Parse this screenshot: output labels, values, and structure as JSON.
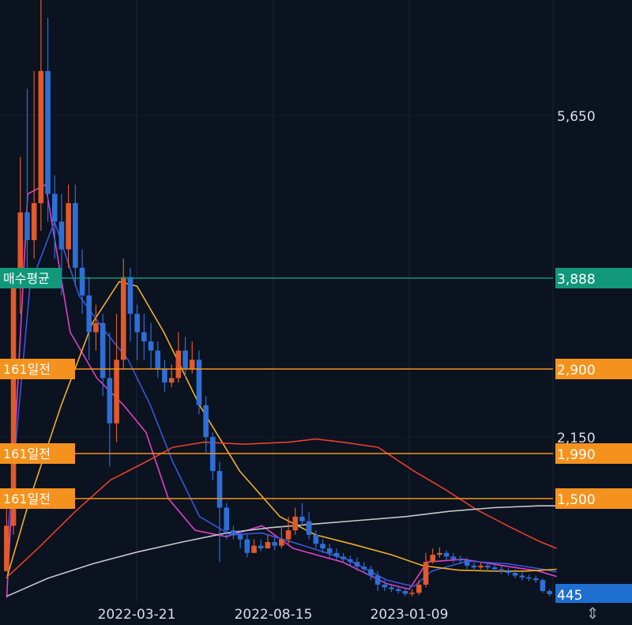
{
  "chart_data": {
    "type": "candlestick",
    "x_ticks": [
      "2022-03-21",
      "2022-08-15",
      "2023-01-09"
    ],
    "y_ticks": [
      "5,650",
      "2,150"
    ],
    "ylim": [
      400,
      6300
    ],
    "grid": true,
    "price_lines": [
      {
        "label": "매수평균",
        "value": 3888,
        "value_text": "3,888",
        "color": "#11977a"
      },
      {
        "label": "161일전",
        "value": 2900,
        "value_text": "2,900",
        "color": "#f5921e"
      },
      {
        "label": "161일전",
        "value": 1990,
        "value_text": "1,990",
        "color": "#f5921e"
      },
      {
        "label": "161일전",
        "value": 1500,
        "value_text": "1,500",
        "color": "#f5921e"
      }
    ],
    "current_price": {
      "value": 445,
      "value_text": "445",
      "color": "#1f6fd1"
    },
    "colors": {
      "up": "#e05a2b",
      "down": "#2d6fd6",
      "ma_short": "#e040c8",
      "ma_mid": "#3a56d8",
      "ma_long1": "#f0b020",
      "ma_long2": "#e8402a",
      "ma_long3": "#c8c8c8"
    },
    "candles": [
      [
        700,
        1200,
        1500,
        700
      ],
      [
        1200,
        3800,
        4000,
        1100
      ],
      [
        3800,
        4600,
        5200,
        3500
      ],
      [
        4600,
        4300,
        5800,
        4000
      ],
      [
        4300,
        4700,
        5900,
        4100
      ],
      [
        4700,
        5900,
        6300,
        4400
      ],
      [
        5900,
        4800,
        6200,
        4500
      ],
      [
        4800,
        4500,
        5000,
        4100
      ],
      [
        4500,
        4200,
        4800,
        3700
      ],
      [
        4200,
        4700,
        4900,
        4000
      ],
      [
        4700,
        4000,
        4900,
        3800
      ],
      [
        4000,
        3700,
        4200,
        3500
      ],
      [
        3700,
        3300,
        3900,
        3000
      ],
      [
        3300,
        3400,
        3600,
        3100
      ],
      [
        3400,
        2800,
        3500,
        2600
      ],
      [
        2800,
        2300,
        3300,
        1850
      ],
      [
        2300,
        3000,
        3500,
        2100
      ],
      [
        3000,
        3900,
        4100,
        2900
      ],
      [
        3900,
        3500,
        4000,
        3200
      ],
      [
        3500,
        3300,
        3600,
        3000
      ],
      [
        3300,
        3200,
        3500,
        3000
      ],
      [
        3200,
        3100,
        3400,
        2900
      ],
      [
        3100,
        2900,
        3200,
        2800
      ],
      [
        2900,
        2750,
        3000,
        2650
      ],
      [
        2750,
        2800,
        2950,
        2700
      ],
      [
        2800,
        3100,
        3300,
        2750
      ],
      [
        3100,
        2900,
        3250,
        2800
      ],
      [
        2900,
        3000,
        3200,
        2850
      ],
      [
        3000,
        2500,
        3100,
        2400
      ],
      [
        2500,
        2150,
        2600,
        2000
      ],
      [
        2150,
        1800,
        2200,
        1700
      ],
      [
        1800,
        1400,
        1900,
        800
      ],
      [
        1400,
        1150,
        1450,
        1050
      ],
      [
        1150,
        1100,
        1200,
        1050
      ],
      [
        1100,
        1050,
        1150,
        950
      ],
      [
        1050,
        900,
        1100,
        850
      ],
      [
        900,
        980,
        1050,
        900
      ],
      [
        980,
        950,
        1050,
        920
      ],
      [
        950,
        1020,
        1100,
        950
      ],
      [
        1020,
        980,
        1080,
        930
      ],
      [
        980,
        1050,
        1200,
        950
      ],
      [
        1050,
        1150,
        1300,
        1000
      ],
      [
        1150,
        1300,
        1400,
        1100
      ],
      [
        1300,
        1250,
        1450,
        1200
      ],
      [
        1250,
        1100,
        1350,
        1050
      ],
      [
        1100,
        1000,
        1150,
        950
      ],
      [
        1000,
        950,
        1050,
        900
      ],
      [
        950,
        900,
        1000,
        850
      ],
      [
        900,
        860,
        950,
        820
      ],
      [
        860,
        830,
        900,
        790
      ],
      [
        830,
        800,
        870,
        760
      ],
      [
        800,
        750,
        850,
        700
      ],
      [
        750,
        720,
        800,
        680
      ],
      [
        720,
        650,
        760,
        600
      ],
      [
        650,
        550,
        700,
        480
      ],
      [
        550,
        520,
        600,
        480
      ],
      [
        520,
        500,
        560,
        470
      ],
      [
        500,
        480,
        530,
        450
      ],
      [
        480,
        450,
        500,
        430
      ],
      [
        450,
        460,
        500,
        430
      ],
      [
        460,
        550,
        600,
        440
      ],
      [
        550,
        800,
        900,
        520
      ],
      [
        800,
        880,
        950,
        780
      ],
      [
        880,
        900,
        960,
        850
      ],
      [
        900,
        860,
        930,
        820
      ],
      [
        860,
        830,
        900,
        790
      ],
      [
        830,
        820,
        870,
        780
      ],
      [
        820,
        760,
        850,
        720
      ],
      [
        760,
        740,
        790,
        700
      ],
      [
        740,
        760,
        800,
        720
      ],
      [
        760,
        740,
        790,
        700
      ],
      [
        740,
        720,
        770,
        690
      ],
      [
        720,
        700,
        760,
        670
      ],
      [
        700,
        680,
        730,
        650
      ],
      [
        680,
        650,
        720,
        620
      ],
      [
        650,
        630,
        690,
        600
      ],
      [
        630,
        620,
        660,
        590
      ],
      [
        620,
        600,
        650,
        570
      ],
      [
        600,
        480,
        620,
        460
      ],
      [
        480,
        445,
        500,
        430
      ]
    ],
    "ma_lines": [
      [
        [
          0.08,
          420
        ],
        [
          0.55,
          4800
        ],
        [
          0.95,
          4900
        ],
        [
          1.5,
          3300
        ],
        [
          2.1,
          2800
        ],
        [
          2.7,
          2500
        ],
        [
          3.2,
          2200
        ],
        [
          3.7,
          1500
        ],
        [
          4.3,
          1150
        ],
        [
          5.0,
          1080
        ],
        [
          5.8,
          1200
        ],
        [
          6.5,
          950
        ],
        [
          7.6,
          800
        ],
        [
          8.6,
          560
        ],
        [
          9.1,
          500
        ],
        [
          9.5,
          800
        ],
        [
          10.3,
          830
        ],
        [
          11.2,
          760
        ],
        [
          12.0,
          700
        ],
        [
          12.4,
          640
        ]
      ],
      [
        [
          0.08,
          1000
        ],
        [
          0.6,
          3800
        ],
        [
          1.15,
          4500
        ],
        [
          1.7,
          3700
        ],
        [
          2.3,
          3300
        ],
        [
          2.8,
          3000
        ],
        [
          3.3,
          2500
        ],
        [
          3.8,
          1900
        ],
        [
          4.4,
          1300
        ],
        [
          5.1,
          1100
        ],
        [
          5.8,
          1120
        ],
        [
          6.6,
          1000
        ],
        [
          7.7,
          830
        ],
        [
          8.6,
          600
        ],
        [
          9.2,
          530
        ],
        [
          9.6,
          700
        ],
        [
          10.4,
          810
        ],
        [
          11.3,
          780
        ],
        [
          12.1,
          720
        ],
        [
          12.4,
          690
        ]
      ],
      [
        [
          0.08,
          620
        ],
        [
          0.6,
          1500
        ],
        [
          1.3,
          2500
        ],
        [
          2.0,
          3400
        ],
        [
          2.6,
          3850
        ],
        [
          3.0,
          3800
        ],
        [
          3.6,
          3300
        ],
        [
          4.4,
          2500
        ],
        [
          5.3,
          1800
        ],
        [
          6.2,
          1300
        ],
        [
          7.0,
          1100
        ],
        [
          7.8,
          1000
        ],
        [
          8.7,
          880
        ],
        [
          9.4,
          760
        ],
        [
          10.2,
          710
        ],
        [
          11.0,
          700
        ],
        [
          11.7,
          700
        ],
        [
          12.4,
          720
        ]
      ],
      [
        [
          0.08,
          630
        ],
        [
          0.8,
          960
        ],
        [
          1.6,
          1350
        ],
        [
          2.4,
          1700
        ],
        [
          3.2,
          1900
        ],
        [
          3.8,
          2050
        ],
        [
          4.5,
          2100
        ],
        [
          5.4,
          2080
        ],
        [
          6.4,
          2100
        ],
        [
          7.0,
          2130
        ],
        [
          7.6,
          2100
        ],
        [
          8.4,
          2050
        ],
        [
          9.2,
          1800
        ],
        [
          9.9,
          1600
        ],
        [
          10.6,
          1380
        ],
        [
          11.3,
          1200
        ],
        [
          12.0,
          1030
        ],
        [
          12.4,
          950
        ]
      ],
      [
        [
          0.08,
          430
        ],
        [
          1.0,
          620
        ],
        [
          2.0,
          780
        ],
        [
          3.0,
          910
        ],
        [
          4.0,
          1020
        ],
        [
          5.0,
          1120
        ],
        [
          6.0,
          1180
        ],
        [
          7.0,
          1220
        ],
        [
          8.0,
          1260
        ],
        [
          9.0,
          1300
        ],
        [
          10.0,
          1360
        ],
        [
          11.0,
          1400
        ],
        [
          12.0,
          1420
        ],
        [
          12.4,
          1420
        ]
      ]
    ]
  },
  "controls": {
    "scroll_arrows": "⇕"
  }
}
